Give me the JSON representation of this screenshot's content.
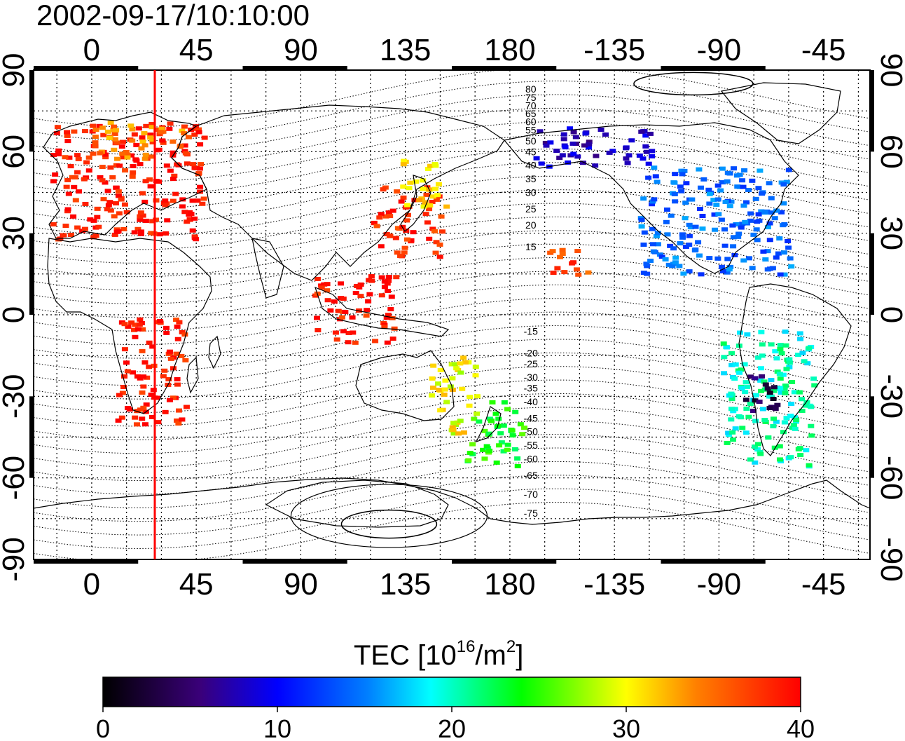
{
  "timestamp": "2002-09-17/10:10:00",
  "top_longitude_labels": [
    "0",
    "45",
    "90",
    "135",
    "180",
    "-135",
    "-90",
    "-45"
  ],
  "bottom_longitude_labels": [
    "0",
    "45",
    "90",
    "135",
    "180",
    "-135",
    "-90",
    "-45"
  ],
  "left_latitude_labels": [
    "90",
    "60",
    "30",
    "0",
    "-30",
    "-60",
    "-90"
  ],
  "right_latitude_labels": [
    "90",
    "60",
    "30",
    "0",
    "-30",
    "-60",
    "-90"
  ],
  "contour_labels": [
    "80",
    "75",
    "70",
    "65",
    "60",
    "55",
    "50",
    "45",
    "40",
    "35",
    "30",
    "25",
    "20",
    "15",
    "-15",
    "-20",
    "-25",
    "-30",
    "-35",
    "-40",
    "-45",
    "-50",
    "-55",
    "-60",
    "-65",
    "-70",
    "-75"
  ],
  "colorbar": {
    "title_prefix": "TEC  [10",
    "title_exponent": "16",
    "title_mid": "/m",
    "title_exp2": "2",
    "title_suffix": "]",
    "tick_labels": [
      "0",
      "10",
      "20",
      "30",
      "40"
    ],
    "range": [
      0,
      40
    ],
    "colors": [
      "#000000",
      "#3a007a",
      "#0000ff",
      "#00ffff",
      "#00ff00",
      "#ffff00",
      "#ff7f00",
      "#ff0000"
    ]
  },
  "chart_data": {
    "type": "heatmap",
    "title": "2002-09-17/10:10:00",
    "xlabel": "",
    "ylabel": "",
    "xlim": [
      -25,
      335
    ],
    "ylim": [
      -90,
      90
    ],
    "x_ticks": [
      0,
      45,
      90,
      135,
      180,
      225,
      270,
      315
    ],
    "y_ticks": [
      90,
      60,
      30,
      0,
      -30,
      -60,
      -90
    ],
    "grid": true,
    "colorscale_range": [
      0,
      40
    ],
    "subsolar_longitude": 28,
    "regions": [
      {
        "lon": [
          -18,
          48
        ],
        "lat": [
          28,
          72
        ],
        "value": 39
      },
      {
        "lon": [
          0,
          42
        ],
        "lat": [
          58,
          72
        ],
        "value": 34
      },
      {
        "lon": [
          120,
          150
        ],
        "lat": [
          22,
          48
        ],
        "value": 38
      },
      {
        "lon": [
          132,
          152
        ],
        "lat": [
          40,
          58
        ],
        "value": 31
      },
      {
        "lon": [
          95,
          130
        ],
        "lat": [
          -10,
          15
        ],
        "value": 39
      },
      {
        "lon": [
          10,
          40
        ],
        "lat": [
          -40,
          0
        ],
        "value": 39
      },
      {
        "lon": [
          145,
          165
        ],
        "lat": [
          -45,
          -15
        ],
        "value": 30
      },
      {
        "lon": [
          160,
          185
        ],
        "lat": [
          -55,
          -30
        ],
        "value": 24
      },
      {
        "lon": [
          235,
          300
        ],
        "lat": [
          15,
          55
        ],
        "value": 14
      },
      {
        "lon": [
          190,
          240
        ],
        "lat": [
          55,
          70
        ],
        "value": 8
      },
      {
        "lon": [
          270,
          310
        ],
        "lat": [
          -55,
          -5
        ],
        "value": 20
      },
      {
        "lon": [
          280,
          295
        ],
        "lat": [
          -35,
          -20
        ],
        "value": 4
      },
      {
        "lon": [
          195,
          215
        ],
        "lat": [
          15,
          25
        ],
        "value": 37
      }
    ]
  }
}
